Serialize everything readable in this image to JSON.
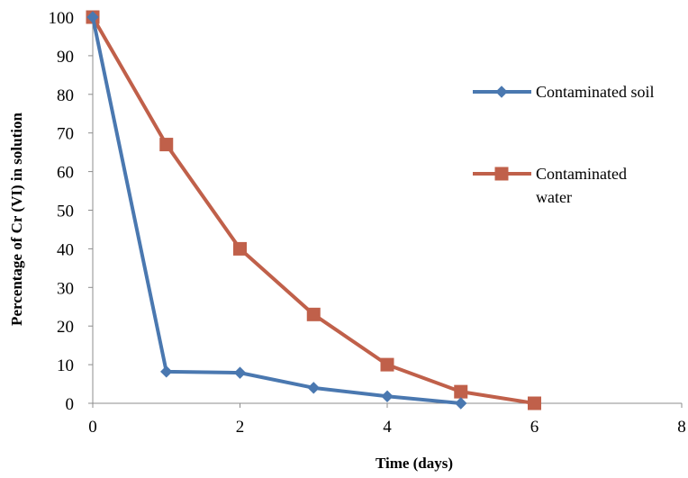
{
  "chart_data": {
    "type": "line",
    "title": "",
    "xlabel": "Time (days)",
    "ylabel": "Percentage of Cr (VI) in solution",
    "xlim": [
      0,
      8
    ],
    "ylim": [
      0,
      100
    ],
    "xticks": [
      "0",
      "2",
      "4",
      "6",
      "8"
    ],
    "yticks": [
      "0",
      "10",
      "20",
      "30",
      "40",
      "50",
      "60",
      "70",
      "80",
      "90",
      "100"
    ],
    "grid": false,
    "legend_position": "right",
    "series": [
      {
        "name": "Contaminated soil",
        "marker": "diamond",
        "color": "#4a78b0",
        "x": [
          0,
          1,
          2,
          3,
          4,
          5
        ],
        "y": [
          100,
          8.2,
          7.9,
          4.0,
          1.8,
          0
        ]
      },
      {
        "name": "Contaminated water",
        "marker": "square",
        "color": "#c0604a",
        "x": [
          0,
          1,
          2,
          3,
          4,
          5,
          6
        ],
        "y": [
          100,
          67,
          40,
          23,
          10,
          3,
          0
        ]
      }
    ]
  }
}
